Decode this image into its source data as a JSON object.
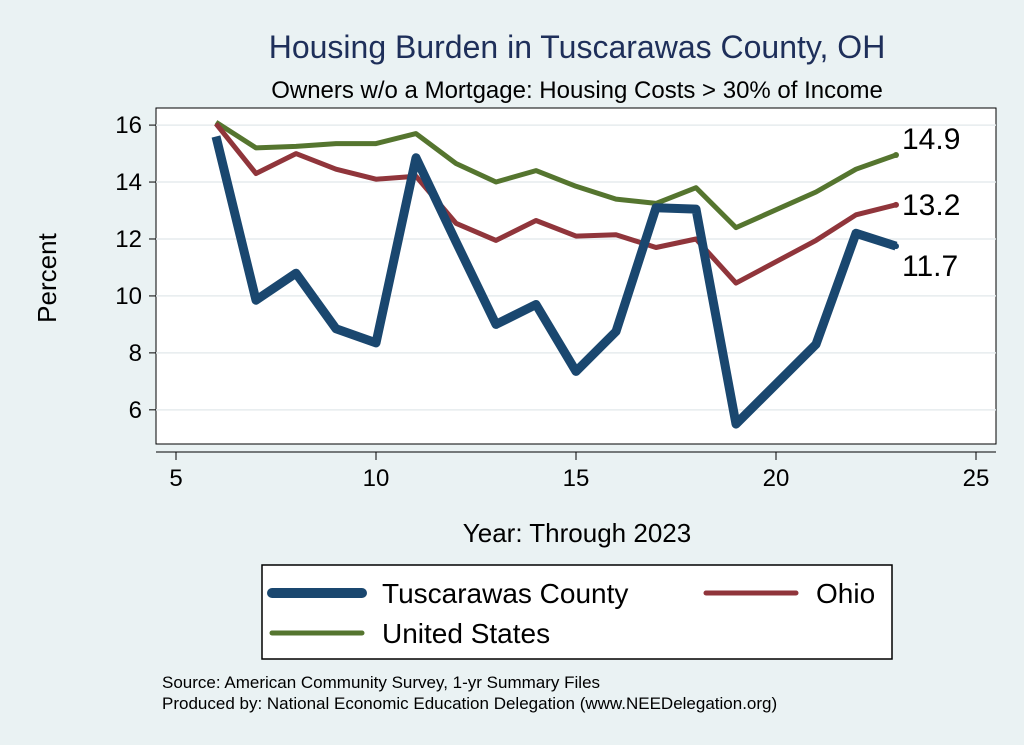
{
  "chart_data": {
    "type": "line",
    "title": "Housing Burden in Tuscarawas County, OH",
    "subtitle": "Owners w/o a Mortgage: Housing Costs > 30% of Income",
    "xlabel": "Year: Through 2023",
    "ylabel": "Percent",
    "xlim": [
      4.5,
      25.5
    ],
    "ylim": [
      4.8,
      16.6
    ],
    "xticks": [
      5,
      10,
      15,
      20,
      25
    ],
    "yticks": [
      6,
      8,
      10,
      12,
      14,
      16
    ],
    "grid": true,
    "legend_position": "bottom",
    "series": [
      {
        "name": "Tuscarawas County",
        "color": "#1a476f",
        "x": [
          6,
          7,
          8,
          9,
          10,
          11,
          12,
          13,
          14,
          15,
          16,
          17,
          18,
          19,
          21,
          22,
          23
        ],
        "values": [
          15.6,
          9.85,
          10.8,
          8.85,
          8.35,
          14.85,
          11.9,
          9.0,
          9.7,
          7.35,
          8.75,
          13.1,
          13.05,
          5.5,
          8.3,
          12.2,
          11.75
        ],
        "end_label": "11.7"
      },
      {
        "name": "Ohio",
        "color": "#90353b",
        "x": [
          6,
          7,
          8,
          9,
          10,
          11,
          12,
          13,
          14,
          15,
          16,
          17,
          18,
          19,
          21,
          22,
          23
        ],
        "values": [
          16.05,
          14.3,
          15.0,
          14.45,
          14.1,
          14.2,
          12.55,
          11.95,
          12.65,
          12.1,
          12.15,
          11.7,
          12.0,
          10.45,
          11.95,
          12.85,
          13.2
        ],
        "end_label": "13.2"
      },
      {
        "name": "United States",
        "color": "#55752f",
        "x": [
          6,
          7,
          8,
          9,
          10,
          11,
          12,
          13,
          14,
          15,
          16,
          17,
          18,
          19,
          21,
          22,
          23
        ],
        "values": [
          16.1,
          15.2,
          15.25,
          15.35,
          15.35,
          15.7,
          14.65,
          14.0,
          14.4,
          13.85,
          13.4,
          13.25,
          13.8,
          12.4,
          13.65,
          14.45,
          14.95
        ],
        "end_label": "14.9"
      }
    ],
    "legend": {
      "items": [
        "Tuscarawas County",
        "Ohio",
        "United States"
      ]
    },
    "notes": [
      "Source: American Community Survey, 1-yr Summary Files",
      "Produced by: National Economic Education Delegation (www.NEEDelegation.org)"
    ]
  }
}
